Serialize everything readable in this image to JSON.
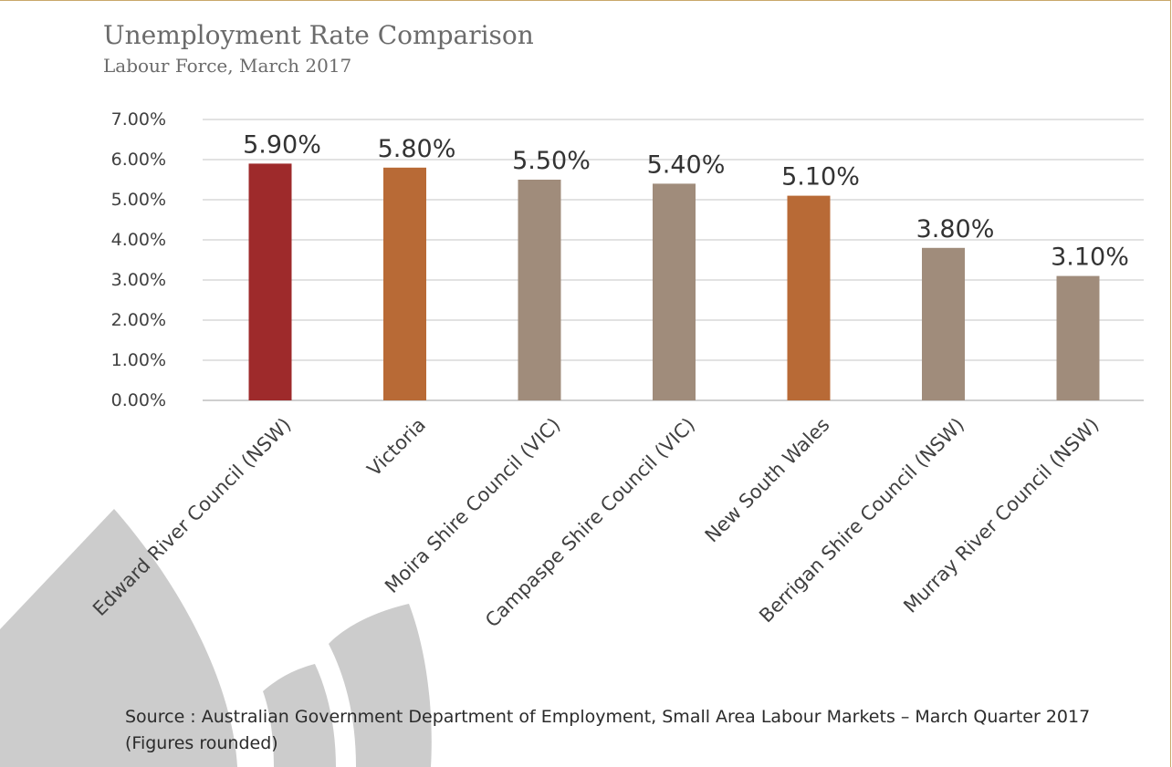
{
  "title": "Unemployment Rate Comparison",
  "subtitle": "Labour Force, March 2017",
  "source": "Source : Australian Government Department of Employment, Small Area Labour Markets – March Quarter 2017 (Figures rounded)",
  "colors": {
    "highlight": "#9e2a2b",
    "state": "#b86a36",
    "region": "#a08c7b",
    "grid": "#d9d9d9",
    "text": "#404040",
    "frame": "#c9a86a",
    "decoration": "#cccccc"
  },
  "chart_data": {
    "type": "bar",
    "categories": [
      "Edward River Council (NSW)",
      "Victoria",
      "Moira Shire Council (VIC)",
      "Campaspe Shire Council (VIC)",
      "New South Wales",
      "Berrigan Shire Council (NSW)",
      "Murray River Council (NSW)"
    ],
    "values": [
      5.9,
      5.8,
      5.5,
      5.4,
      5.1,
      3.8,
      3.1
    ],
    "data_labels": [
      "5.90%",
      "5.80%",
      "5.50%",
      "5.40%",
      "5.10%",
      "3.80%",
      "3.10%"
    ],
    "bar_color_keys": [
      "highlight",
      "state",
      "region",
      "region",
      "state",
      "region",
      "region"
    ],
    "y_ticks": [
      "0.00%",
      "1.00%",
      "2.00%",
      "3.00%",
      "4.00%",
      "5.00%",
      "6.00%",
      "7.00%"
    ],
    "ylim": [
      0,
      7
    ],
    "grid": true,
    "legend": "none",
    "title": "Unemployment Rate Comparison",
    "xlabel": "",
    "ylabel": ""
  }
}
